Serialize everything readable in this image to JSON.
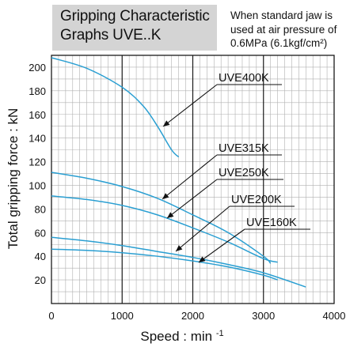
{
  "header": {
    "title": "Gripping Characteristic\nGraphs   UVE..K",
    "note": "When standard jaw is\nused at air pressure of\n0.6MPa (6.1kgf/cm²)"
  },
  "colors": {
    "curve": "#2a9fd2",
    "grid_minor": "#b0b0b0",
    "grid_major": "#1a1a1a",
    "title_box": "#d4d4d4"
  },
  "chart_data": {
    "type": "line",
    "title": "",
    "xlabel": "Speed : min-1",
    "ylabel": "Total gripping force : kN",
    "xlim": [
      0,
      4000
    ],
    "ylim": [
      0,
      210
    ],
    "xticks": [
      "0",
      "1000",
      "2000",
      "3000",
      "4000"
    ],
    "yticks": [
      "20",
      "40",
      "60",
      "80",
      "100",
      "120",
      "140",
      "160",
      "180",
      "200"
    ],
    "grid": true,
    "series": [
      {
        "name": "UVE400K",
        "x": [
          0,
          500,
          1000,
          1300,
          1500,
          1700,
          1800
        ],
        "y": [
          208,
          199,
          183,
          167,
          150,
          130,
          124
        ]
      },
      {
        "name": "UVE315K",
        "x": [
          0,
          500,
          1000,
          1500,
          2000,
          2500,
          3000,
          3100
        ],
        "y": [
          111,
          106,
          99,
          89,
          75,
          60,
          40,
          34
        ]
      },
      {
        "name": "UVE250K",
        "x": [
          0,
          500,
          1000,
          1500,
          2000,
          2500,
          3000,
          3200
        ],
        "y": [
          91,
          88,
          83,
          75,
          64,
          52,
          38,
          35
        ]
      },
      {
        "name": "UVE200K",
        "x": [
          0,
          500,
          1000,
          1500,
          2000,
          2500,
          3000,
          3600
        ],
        "y": [
          56,
          53,
          49,
          44,
          39,
          33,
          26,
          14
        ]
      },
      {
        "name": "UVE160K",
        "x": [
          0,
          500,
          1000,
          1500,
          2000,
          2500,
          3000,
          3200
        ],
        "y": [
          46,
          45,
          43,
          40,
          36,
          31,
          24,
          20
        ]
      }
    ]
  }
}
